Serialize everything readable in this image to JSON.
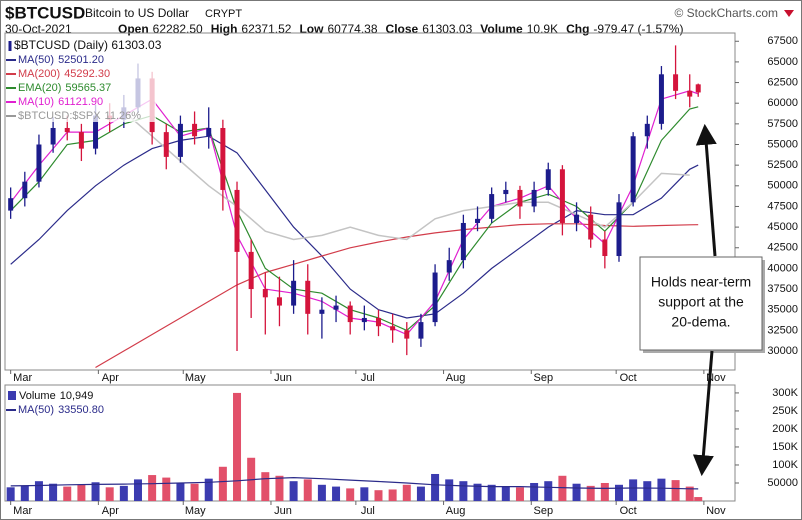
{
  "header": {
    "symbol": "$BTCUSD",
    "name": "Bitcoin to US Dollar",
    "exchange": "CRYPT",
    "source": "© StockCharts.com",
    "date": "30-Oct-2021",
    "stats": [
      {
        "label": "Open",
        "value": "62282.50"
      },
      {
        "label": "High",
        "value": "62371.52"
      },
      {
        "label": "Low",
        "value": "60774.38"
      },
      {
        "label": "Close",
        "value": "61303.03"
      },
      {
        "label": "Volume",
        "value": "10.9K"
      },
      {
        "label": "Chg",
        "value": "-979.47 (-1.57%)"
      }
    ]
  },
  "annotation": [
    "Holds near-term",
    "support at the",
    "20-dema."
  ],
  "chart_data": [
    {
      "type": "candlestick",
      "legend": "$BTCUSD (Daily) 61303.03",
      "up_color": "#1c1c8c",
      "down_color": "#d4143c",
      "x": [
        0,
        5,
        10,
        15,
        20,
        25,
        30,
        35,
        40,
        45,
        50,
        55,
        60,
        65,
        70,
        75,
        80,
        85,
        90,
        95,
        100,
        105,
        110,
        115,
        120,
        125,
        130,
        135,
        140,
        145,
        150,
        155,
        160,
        165,
        170,
        175,
        180,
        185,
        190,
        195,
        200,
        205,
        210,
        215,
        220,
        225,
        230,
        235,
        240,
        243
      ],
      "open": [
        47000,
        48500,
        50500,
        55000,
        57000,
        56500,
        54500,
        58500,
        58000,
        59500,
        63000,
        56500,
        53500,
        57500,
        56000,
        57000,
        49500,
        42000,
        37500,
        36500,
        35500,
        38500,
        34500,
        35000,
        35500,
        33500,
        34000,
        33000,
        32500,
        31500,
        33500,
        39500,
        41000,
        45500,
        46000,
        49000,
        49500,
        47500,
        49500,
        52000,
        45500,
        46500,
        43500,
        41500,
        48000,
        56000,
        57500,
        63500,
        61500,
        62282.5
      ],
      "high": [
        49800,
        51700,
        56200,
        58300,
        58500,
        57500,
        59800,
        60000,
        61000,
        64800,
        63800,
        57500,
        58500,
        59000,
        59500,
        58000,
        50500,
        43500,
        39500,
        39000,
        41000,
        40500,
        36500,
        36700,
        36000,
        35500,
        35000,
        34500,
        33500,
        34500,
        40500,
        42500,
        46500,
        47500,
        49800,
        50500,
        50000,
        50500,
        52800,
        52500,
        48000,
        47500,
        44500,
        49000,
        56500,
        58500,
        64500,
        67000,
        63500,
        62371.52
      ],
      "low": [
        46000,
        47500,
        49800,
        54000,
        55500,
        53000,
        53800,
        56500,
        57000,
        58800,
        55000,
        52000,
        52800,
        55000,
        54500,
        47000,
        30000,
        34000,
        32000,
        33000,
        34500,
        32000,
        31500,
        33500,
        32000,
        32500,
        31800,
        31000,
        29500,
        30500,
        33000,
        38500,
        40000,
        44500,
        45500,
        48000,
        46000,
        46800,
        48800,
        44000,
        44500,
        42500,
        40000,
        40800,
        47500,
        54500,
        56800,
        60500,
        59500,
        60774.38
      ],
      "close": [
        48500,
        50500,
        55000,
        57000,
        56500,
        54500,
        58500,
        58000,
        59500,
        63000,
        56500,
        53500,
        57500,
        56000,
        57000,
        49500,
        42000,
        37500,
        36500,
        35500,
        38500,
        34500,
        35000,
        35500,
        33500,
        34000,
        33000,
        32500,
        31500,
        33500,
        39500,
        41000,
        45500,
        46000,
        49000,
        49500,
        47500,
        49500,
        52000,
        45500,
        46500,
        43500,
        41500,
        48000,
        56000,
        57500,
        63500,
        61500,
        60800,
        61303.03
      ],
      "series": [
        {
          "name": "MA(50)",
          "legend_value": "52501.20",
          "color": "#2b2b8a",
          "x": [
            0,
            10,
            20,
            30,
            40,
            50,
            60,
            70,
            80,
            90,
            100,
            110,
            120,
            130,
            140,
            150,
            160,
            170,
            180,
            190,
            200,
            210,
            220,
            230,
            240,
            243
          ],
          "values": [
            40500,
            43500,
            47000,
            50000,
            52500,
            54500,
            55500,
            56000,
            54000,
            49500,
            45000,
            41500,
            37500,
            35000,
            34000,
            34500,
            37000,
            40000,
            42500,
            45000,
            47000,
            46500,
            46500,
            48500,
            52000,
            52501.2
          ]
        },
        {
          "name": "MA(200)",
          "legend_value": "45292.30",
          "color": "#d23c4a",
          "x": [
            0,
            10,
            20,
            30,
            40,
            50,
            60,
            70,
            80,
            90,
            100,
            110,
            120,
            130,
            140,
            150,
            160,
            170,
            180,
            190,
            200,
            210,
            220,
            230,
            240,
            243
          ],
          "values": [
            null,
            null,
            null,
            28000,
            30000,
            32000,
            34000,
            36000,
            38000,
            39500,
            40500,
            41500,
            42500,
            43200,
            43800,
            44300,
            44700,
            45000,
            45300,
            45400,
            45400,
            45200,
            45100,
            45200,
            45280,
            45292.3
          ]
        },
        {
          "name": "EMA(20)",
          "legend_value": "59565.37",
          "color": "#2e8b2e",
          "x": [
            0,
            10,
            20,
            30,
            40,
            50,
            60,
            70,
            80,
            90,
            100,
            110,
            120,
            130,
            140,
            150,
            160,
            170,
            180,
            190,
            200,
            210,
            220,
            230,
            240,
            243
          ],
          "values": [
            47000,
            50500,
            55000,
            55500,
            57500,
            58500,
            56500,
            57000,
            47000,
            40000,
            37500,
            37000,
            35000,
            34000,
            32500,
            35500,
            41000,
            45500,
            48000,
            49000,
            47500,
            44500,
            48000,
            55500,
            59300,
            59565.37
          ]
        },
        {
          "name": "MA(10)",
          "legend_value": "61121.90",
          "color": "#e020d0",
          "x": [
            0,
            10,
            20,
            30,
            40,
            50,
            60,
            70,
            80,
            90,
            100,
            110,
            120,
            130,
            140,
            150,
            160,
            170,
            180,
            190,
            200,
            210,
            220,
            230,
            240,
            243
          ],
          "values": [
            48000,
            52500,
            56500,
            56500,
            58500,
            60500,
            56000,
            57000,
            44000,
            37500,
            37000,
            36000,
            34000,
            33500,
            32000,
            36000,
            43500,
            47500,
            48500,
            50000,
            46000,
            43000,
            50000,
            60500,
            61500,
            61121.9
          ]
        },
        {
          "name": "$BTCUSD:$SPX",
          "legend_value": "11.26%",
          "color": "#c4c4c4",
          "x": [
            40,
            50,
            60,
            70,
            80,
            90,
            100,
            110,
            120,
            130,
            140,
            150,
            160,
            170,
            180,
            190,
            200,
            210,
            220,
            230,
            240
          ],
          "values": [
            59000,
            56000,
            53000,
            50000,
            47500,
            44500,
            43500,
            44000,
            45000,
            44000,
            43500,
            46000,
            47000,
            47500,
            48000,
            48000,
            46500,
            45000,
            48000,
            51500,
            51300
          ]
        }
      ],
      "xlim": [
        -2,
        256
      ],
      "xticks": [
        {
          "value": 0,
          "label": "Mar"
        },
        {
          "value": 31,
          "label": "Apr"
        },
        {
          "value": 61,
          "label": "May"
        },
        {
          "value": 92,
          "label": "Jun"
        },
        {
          "value": 122,
          "label": "Jul"
        },
        {
          "value": 153,
          "label": "Aug"
        },
        {
          "value": 184,
          "label": "Sep"
        },
        {
          "value": 214,
          "label": "Oct"
        },
        {
          "value": 245,
          "label": "Nov"
        }
      ],
      "ylim": [
        27700,
        68500
      ],
      "yticks": [
        30000,
        32500,
        35000,
        37500,
        40000,
        42500,
        45000,
        47500,
        50000,
        52500,
        55000,
        57500,
        60000,
        62500,
        65000,
        67500
      ]
    },
    {
      "type": "bar",
      "x": [
        0,
        5,
        10,
        15,
        20,
        25,
        30,
        35,
        40,
        45,
        50,
        55,
        60,
        65,
        70,
        75,
        80,
        85,
        90,
        95,
        100,
        105,
        110,
        115,
        120,
        125,
        130,
        135,
        140,
        145,
        150,
        155,
        160,
        165,
        170,
        175,
        180,
        185,
        190,
        195,
        200,
        205,
        210,
        215,
        220,
        225,
        230,
        235,
        240,
        243
      ],
      "series": [
        {
          "name": "Volume",
          "legend_value": "10,949",
          "up_color": "#3b3bb0",
          "down_color": "#e2506a",
          "values": [
            38000,
            42000,
            55000,
            48000,
            40000,
            45000,
            52000,
            38000,
            42000,
            60000,
            72000,
            65000,
            50000,
            48000,
            62000,
            95000,
            300000,
            120000,
            80000,
            70000,
            55000,
            60000,
            45000,
            40000,
            35000,
            38000,
            30000,
            32000,
            45000,
            40000,
            75000,
            60000,
            55000,
            48000,
            45000,
            40000,
            38000,
            50000,
            55000,
            70000,
            48000,
            42000,
            50000,
            45000,
            60000,
            55000,
            62000,
            58000,
            40000,
            10949
          ]
        },
        {
          "name": "MA(50)",
          "legend_value": "33550.80",
          "color": "#2b2b8a",
          "x": [
            0,
            10,
            20,
            30,
            40,
            50,
            60,
            70,
            80,
            90,
            100,
            110,
            120,
            130,
            140,
            150,
            160,
            170,
            180,
            190,
            200,
            210,
            220,
            230,
            240,
            243
          ],
          "values": [
            42000,
            43000,
            45000,
            46000,
            47000,
            48000,
            50000,
            52000,
            56000,
            62000,
            65000,
            62000,
            58000,
            54000,
            50000,
            45000,
            42000,
            40000,
            40000,
            38000,
            36000,
            35000,
            36000,
            35500,
            34000,
            33550.8
          ]
        }
      ],
      "xlim": [
        -2,
        256
      ],
      "xticks": [
        {
          "value": 0,
          "label": "Mar"
        },
        {
          "value": 31,
          "label": "Apr"
        },
        {
          "value": 61,
          "label": "May"
        },
        {
          "value": 92,
          "label": "Jun"
        },
        {
          "value": 122,
          "label": "Jul"
        },
        {
          "value": 153,
          "label": "Aug"
        },
        {
          "value": 184,
          "label": "Sep"
        },
        {
          "value": 214,
          "label": "Oct"
        },
        {
          "value": 245,
          "label": "Nov"
        }
      ],
      "ylim": [
        0,
        322000
      ],
      "yticks": [
        50000,
        {
          "value": 100000,
          "label": "100K"
        },
        {
          "value": 150000,
          "label": "150K"
        },
        {
          "value": 200000,
          "label": "200K"
        },
        {
          "value": 250000,
          "label": "250K"
        },
        {
          "value": 300000,
          "label": "300K"
        }
      ]
    }
  ]
}
